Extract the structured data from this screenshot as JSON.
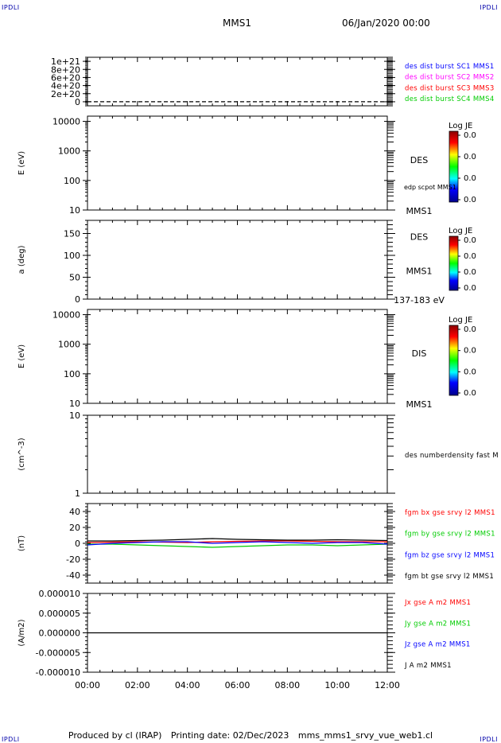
{
  "header": {
    "spacecraft": "MMS1",
    "datetime": "06/Jan/2020 00:00",
    "corner_tl": "IPDLI",
    "corner_tr": "IPDLI",
    "corner_bl": "IPDLI",
    "corner_br": "IPDLI"
  },
  "footer": {
    "produced_by": "Produced by cl (IRAP)",
    "printing_date": "Printing date: 02/Dec/2023",
    "file_name": "mms_mms1_srvy_vue_web1.cl"
  },
  "chart_data": [
    {
      "id": "p1",
      "type": "line",
      "ylabel": "",
      "ylim": [
        -1e+20,
        1.1e+21
      ],
      "yticks": [
        "0",
        "2e+20",
        "4e+20",
        "6e+20",
        "8e+20",
        "1e+21"
      ],
      "ytick_values": [
        0,
        2e+20,
        4e+20,
        6e+20,
        8e+20,
        1e+21
      ],
      "legend": [
        {
          "text": "des dist burst SC1 MMS1",
          "color": "#0000ff"
        },
        {
          "text": "des dist burst SC2 MMS2",
          "color": "#ff00ff"
        },
        {
          "text": "des dist burst SC3 MMS3",
          "color": "#ff0000"
        },
        {
          "text": "des dist burst SC4 MMS4",
          "color": "#00cc00"
        }
      ],
      "series": [
        {
          "style": "dashed",
          "color": "#000000",
          "x_hours": [
            0,
            12
          ],
          "y": [
            0,
            0
          ]
        }
      ]
    },
    {
      "id": "p2",
      "type": "heatmap",
      "ylabel": "E (eV)",
      "log": true,
      "ylim": [
        10,
        15000
      ],
      "yticks": [
        "10",
        "100",
        "1000",
        "10000"
      ],
      "ytick_values": [
        10,
        100,
        1000,
        10000
      ],
      "label_main": "DES",
      "label_sub": "edp scpot MMS1",
      "label_bottom": "MMS1",
      "colorbar": {
        "title": "Log JE",
        "ticks": [
          "0.0",
          "0.0",
          "0.0",
          "0.0"
        ]
      }
    },
    {
      "id": "p3",
      "type": "heatmap",
      "ylabel": "a (deg)",
      "ylim": [
        0,
        180
      ],
      "yticks": [
        "0",
        "50",
        "100",
        "150"
      ],
      "ytick_values": [
        0,
        50,
        100,
        150
      ],
      "label_main": "DES",
      "label_mid": "MMS1",
      "label_bottom": "137-183 eV",
      "colorbar": {
        "title": "Log JE",
        "ticks": [
          "0.0",
          "0.0",
          "0.0",
          "0.0"
        ]
      }
    },
    {
      "id": "p4",
      "type": "heatmap",
      "ylabel": "E (eV)",
      "log": true,
      "ylim": [
        10,
        15000
      ],
      "yticks": [
        "10",
        "100",
        "1000",
        "10000"
      ],
      "ytick_values": [
        10,
        100,
        1000,
        10000
      ],
      "label_main": "DIS",
      "label_bottom": "MMS1",
      "colorbar": {
        "title": "Log JE",
        "ticks": [
          "0.0",
          "0.0",
          "0.0",
          "0.0"
        ]
      }
    },
    {
      "id": "p5",
      "type": "line",
      "ylabel": "(cm^-3)",
      "log": true,
      "ylim": [
        1,
        10
      ],
      "yticks": [
        "1",
        "10"
      ],
      "ytick_values": [
        1,
        10
      ],
      "legend": [
        {
          "text": "des numberdensity fast M",
          "color": "#000000"
        }
      ],
      "series": []
    },
    {
      "id": "p6",
      "type": "line",
      "ylabel": "(nT)",
      "ylim": [
        -50,
        50
      ],
      "yticks": [
        "-40",
        "-20",
        "0",
        "20",
        "40"
      ],
      "ytick_values": [
        -40,
        -20,
        0,
        20,
        40
      ],
      "legend": [
        {
          "text": "fgm bx gse srvy l2 MMS1",
          "color": "#ff0000"
        },
        {
          "text": "fgm by gse srvy l2 MMS1",
          "color": "#00cc00"
        },
        {
          "text": "fgm bz gse srvy l2 MMS1",
          "color": "#0000ff"
        },
        {
          "text": "fgm bt gse srvy l2 MMS1",
          "color": "#000000"
        }
      ],
      "series": [
        {
          "name": "fgm bx gse srvy l2 MMS1",
          "color": "#ff0000",
          "x_hours": [
            0,
            1,
            2,
            3,
            4,
            5,
            6,
            7,
            8,
            9,
            10,
            11,
            12
          ],
          "y": [
            1,
            1.5,
            2,
            1.5,
            1,
            2,
            2.5,
            3,
            3,
            2.5,
            2,
            2,
            2
          ]
        },
        {
          "name": "fgm by gse srvy l2 MMS1",
          "color": "#00cc00",
          "x_hours": [
            0,
            1,
            2,
            3,
            4,
            5,
            6,
            7,
            8,
            9,
            10,
            11,
            12
          ],
          "y": [
            -1,
            -1,
            -2,
            -3,
            -4,
            -5,
            -4,
            -3,
            -2,
            -2,
            -3,
            -2,
            -1
          ]
        },
        {
          "name": "fgm bz gse srvy l2 MMS1",
          "color": "#0000ff",
          "x_hours": [
            0,
            1,
            2,
            3,
            4,
            5,
            6,
            7,
            8,
            9,
            10,
            11,
            12
          ],
          "y": [
            -2,
            0,
            1,
            2,
            2,
            0,
            1,
            2,
            1,
            0,
            1,
            1,
            -1
          ]
        },
        {
          "name": "fgm bt gse srvy l2 MMS1",
          "color": "#000000",
          "x_hours": [
            0,
            1,
            2,
            3,
            4,
            5,
            6,
            7,
            8,
            9,
            10,
            11,
            12
          ],
          "y": [
            3,
            3,
            3.5,
            4,
            5,
            6,
            5,
            4.5,
            4,
            4,
            4.5,
            4,
            3.5
          ]
        }
      ]
    },
    {
      "id": "p7",
      "type": "line",
      "ylabel": "(A/m2)",
      "ylim": [
        -1e-05,
        1e-05
      ],
      "yticks": [
        "-0.000010",
        "-0.000005",
        "0.000000",
        "0.000005",
        "0.000010"
      ],
      "ytick_values": [
        -1e-05,
        -5e-06,
        0,
        5e-06,
        1e-05
      ],
      "legend": [
        {
          "text": "Jx gse A m2 MMS1",
          "color": "#ff0000"
        },
        {
          "text": "Jy gse A m2 MMS1",
          "color": "#00cc00"
        },
        {
          "text": "Jz gse A m2 MMS1",
          "color": "#0000ff"
        },
        {
          "text": "J A m2 MMS1",
          "color": "#000000"
        }
      ],
      "series": [
        {
          "name": "J A m2 MMS1",
          "color": "#000000",
          "x_hours": [
            0,
            12
          ],
          "y": [
            0,
            0
          ]
        }
      ]
    }
  ],
  "x_axis": {
    "ticks": [
      "00:00",
      "02:00",
      "04:00",
      "06:00",
      "08:00",
      "10:00",
      "12:00"
    ],
    "tick_hours": [
      0,
      2,
      4,
      6,
      8,
      10,
      12
    ],
    "range_hours": [
      0,
      12
    ]
  }
}
